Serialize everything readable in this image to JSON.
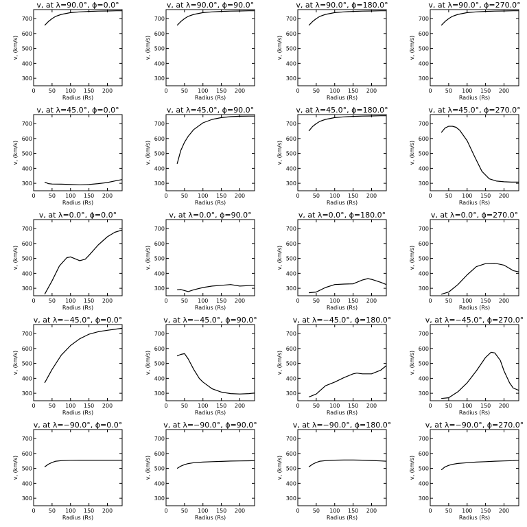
{
  "chart_data": [
    {
      "type": "line",
      "title": "v<sub>r</sub> at λ=90.0°, ϕ=0.0°",
      "title_plain": "v, at λ=90.0°, ϕ=0.0°",
      "xlabel": "Radius (Rs)",
      "ylabel": "v, (km/s)",
      "xlim": [
        0,
        240
      ],
      "ylim": [
        250,
        760
      ],
      "xticks": [
        0,
        50,
        100,
        150,
        200
      ],
      "yticks": [
        300,
        400,
        500,
        600,
        700
      ],
      "x": [
        30,
        40,
        50,
        60,
        75,
        100,
        125,
        150,
        175,
        200,
        225,
        240
      ],
      "y": [
        655,
        680,
        700,
        715,
        728,
        740,
        745,
        748,
        750,
        751,
        752,
        752
      ]
    },
    {
      "type": "line",
      "title_plain": "v, at λ=90.0°, ϕ=90.0°",
      "xlabel": "Radius (Rs)",
      "ylabel": "v, (km/s)",
      "xlim": [
        0,
        240
      ],
      "ylim": [
        250,
        760
      ],
      "xticks": [
        0,
        50,
        100,
        150,
        200
      ],
      "yticks": [
        300,
        400,
        500,
        600,
        700
      ],
      "x": [
        30,
        40,
        50,
        60,
        75,
        100,
        125,
        150,
        175,
        200,
        225,
        240
      ],
      "y": [
        655,
        680,
        700,
        715,
        728,
        740,
        745,
        748,
        750,
        751,
        752,
        752
      ]
    },
    {
      "type": "line",
      "title_plain": "v, at λ=90.0°, ϕ=180.0°",
      "xlabel": "Radius (Rs)",
      "ylabel": "v, (km/s)",
      "xlim": [
        0,
        240
      ],
      "ylim": [
        250,
        760
      ],
      "xticks": [
        0,
        50,
        100,
        150,
        200
      ],
      "yticks": [
        300,
        400,
        500,
        600,
        700
      ],
      "x": [
        30,
        40,
        50,
        60,
        75,
        100,
        125,
        150,
        175,
        200,
        225,
        240
      ],
      "y": [
        655,
        680,
        700,
        715,
        728,
        740,
        745,
        748,
        750,
        751,
        752,
        752
      ]
    },
    {
      "type": "line",
      "title_plain": "v, at λ=90.0°, ϕ=270.0°",
      "xlabel": "Radius (Rs)",
      "ylabel": "v, (km/s)",
      "xlim": [
        0,
        240
      ],
      "ylim": [
        250,
        760
      ],
      "xticks": [
        0,
        50,
        100,
        150,
        200
      ],
      "yticks": [
        300,
        400,
        500,
        600,
        700
      ],
      "x": [
        30,
        40,
        50,
        60,
        75,
        100,
        125,
        150,
        175,
        200,
        225,
        240
      ],
      "y": [
        655,
        680,
        700,
        715,
        728,
        740,
        745,
        748,
        750,
        751,
        752,
        752
      ]
    },
    {
      "type": "line",
      "title_plain": "v, at λ=45.0°, ϕ=0.0°",
      "xlabel": "Radius (Rs)",
      "ylabel": "v, (km/s)",
      "xlim": [
        0,
        240
      ],
      "ylim": [
        250,
        760
      ],
      "xticks": [
        0,
        50,
        100,
        150,
        200
      ],
      "yticks": [
        300,
        400,
        500,
        600,
        700
      ],
      "x": [
        30,
        40,
        50,
        75,
        100,
        125,
        150,
        175,
        200,
        225,
        240
      ],
      "y": [
        308,
        298,
        295,
        294,
        292,
        290,
        292,
        298,
        305,
        318,
        325
      ]
    },
    {
      "type": "line",
      "title_plain": "v, at λ=45.0°, ϕ=90.0°",
      "xlabel": "Radius (Rs)",
      "ylabel": "v, (km/s)",
      "xlim": [
        0,
        240
      ],
      "ylim": [
        250,
        760
      ],
      "xticks": [
        0,
        50,
        100,
        150,
        200
      ],
      "yticks": [
        300,
        400,
        500,
        600,
        700
      ],
      "x": [
        30,
        40,
        50,
        60,
        75,
        100,
        125,
        150,
        175,
        200,
        225,
        240
      ],
      "y": [
        430,
        520,
        575,
        615,
        660,
        705,
        728,
        740,
        746,
        749,
        750,
        750
      ]
    },
    {
      "type": "line",
      "title_plain": "v, at λ=45.0°, ϕ=180.0°",
      "xlabel": "Radius (Rs)",
      "ylabel": "v, (km/s)",
      "xlim": [
        0,
        240
      ],
      "ylim": [
        250,
        760
      ],
      "xticks": [
        0,
        50,
        100,
        150,
        200
      ],
      "yticks": [
        300,
        400,
        500,
        600,
        700
      ],
      "x": [
        30,
        40,
        50,
        60,
        75,
        100,
        125,
        150,
        175,
        200,
        225,
        240
      ],
      "y": [
        650,
        680,
        700,
        715,
        728,
        740,
        745,
        748,
        750,
        751,
        752,
        752
      ]
    },
    {
      "type": "line",
      "title_plain": "v, at λ=45.0°, ϕ=270.0°",
      "xlabel": "Radius (Rs)",
      "ylabel": "v, (km/s)",
      "xlim": [
        0,
        240
      ],
      "ylim": [
        250,
        760
      ],
      "xticks": [
        0,
        50,
        100,
        150,
        200
      ],
      "yticks": [
        300,
        400,
        500,
        600,
        700
      ],
      "x": [
        30,
        40,
        50,
        60,
        70,
        80,
        100,
        120,
        140,
        160,
        180,
        200,
        220,
        240
      ],
      "y": [
        640,
        670,
        682,
        682,
        675,
        655,
        585,
        480,
        380,
        330,
        315,
        310,
        308,
        308
      ]
    },
    {
      "type": "line",
      "title_plain": "v, at λ=0.0°, ϕ=0.0°",
      "xlabel": "Radius (Rs)",
      "ylabel": "v, (km/s)",
      "xlim": [
        0,
        240
      ],
      "ylim": [
        250,
        760
      ],
      "xticks": [
        0,
        50,
        100,
        150,
        200
      ],
      "yticks": [
        300,
        400,
        500,
        600,
        700
      ],
      "x": [
        30,
        50,
        70,
        90,
        100,
        110,
        125,
        140,
        150,
        175,
        200,
        220,
        240
      ],
      "y": [
        260,
        350,
        450,
        505,
        510,
        500,
        485,
        495,
        520,
        590,
        645,
        675,
        690
      ]
    },
    {
      "type": "line",
      "title_plain": "v, at λ=0.0°, ϕ=90.0°",
      "xlabel": "Radius (Rs)",
      "ylabel": "v, (km/s)",
      "xlim": [
        0,
        240
      ],
      "ylim": [
        250,
        760
      ],
      "xticks": [
        0,
        50,
        100,
        150,
        200
      ],
      "yticks": [
        300,
        400,
        500,
        600,
        700
      ],
      "x": [
        30,
        40,
        50,
        60,
        75,
        100,
        125,
        150,
        175,
        200,
        225,
        240
      ],
      "y": [
        290,
        292,
        285,
        278,
        290,
        305,
        315,
        320,
        325,
        315,
        318,
        320
      ]
    },
    {
      "type": "line",
      "title_plain": "v, at λ=0.0°, ϕ=180.0°",
      "xlabel": "Radius (Rs)",
      "ylabel": "v, (km/s)",
      "xlim": [
        0,
        240
      ],
      "ylim": [
        250,
        760
      ],
      "xticks": [
        0,
        50,
        100,
        150,
        200
      ],
      "yticks": [
        300,
        400,
        500,
        600,
        700
      ],
      "x": [
        30,
        50,
        75,
        100,
        125,
        150,
        175,
        190,
        200,
        225,
        240
      ],
      "y": [
        270,
        275,
        305,
        325,
        328,
        330,
        355,
        365,
        360,
        340,
        325
      ]
    },
    {
      "type": "line",
      "title_plain": "v, at λ=0.0°, ϕ=270.0°",
      "xlabel": "Radius (Rs)",
      "ylabel": "v, (km/s)",
      "xlim": [
        0,
        240
      ],
      "ylim": [
        250,
        760
      ],
      "xticks": [
        0,
        50,
        100,
        150,
        200
      ],
      "yticks": [
        300,
        400,
        500,
        600,
        700
      ],
      "x": [
        30,
        50,
        75,
        100,
        125,
        150,
        175,
        200,
        225,
        240
      ],
      "y": [
        260,
        275,
        325,
        390,
        445,
        465,
        468,
        455,
        418,
        410
      ]
    },
    {
      "type": "line",
      "title_plain": "v, at λ=−45.0°, ϕ=0.0°",
      "xlabel": "Radius (Rs)",
      "ylabel": "v, (km/s)",
      "xlim": [
        0,
        240
      ],
      "ylim": [
        250,
        760
      ],
      "xticks": [
        0,
        50,
        100,
        150,
        200
      ],
      "yticks": [
        300,
        400,
        500,
        600,
        700
      ],
      "x": [
        30,
        50,
        75,
        100,
        125,
        150,
        175,
        200,
        225,
        240
      ],
      "y": [
        370,
        460,
        555,
        620,
        665,
        695,
        712,
        722,
        730,
        735
      ]
    },
    {
      "type": "line",
      "title_plain": "v, at λ=−45.0°, ϕ=90.0°",
      "xlabel": "Radius (Rs)",
      "ylabel": "v, (km/s)",
      "xlim": [
        0,
        240
      ],
      "ylim": [
        250,
        760
      ],
      "xticks": [
        0,
        50,
        100,
        150,
        200
      ],
      "yticks": [
        300,
        400,
        500,
        600,
        700
      ],
      "x": [
        30,
        40,
        50,
        60,
        75,
        90,
        100,
        125,
        150,
        175,
        200,
        225,
        240
      ],
      "y": [
        550,
        560,
        565,
        530,
        460,
        400,
        375,
        330,
        308,
        298,
        295,
        298,
        302
      ]
    },
    {
      "type": "line",
      "title_plain": "v, at λ=−45.0°, ϕ=180.0°",
      "xlabel": "Radius (Rs)",
      "ylabel": "v, (km/s)",
      "xlim": [
        0,
        240
      ],
      "ylim": [
        250,
        760
      ],
      "xticks": [
        0,
        50,
        100,
        150,
        200
      ],
      "yticks": [
        300,
        400,
        500,
        600,
        700
      ],
      "x": [
        30,
        50,
        75,
        100,
        125,
        150,
        160,
        175,
        200,
        225,
        240
      ],
      "y": [
        275,
        295,
        350,
        375,
        405,
        430,
        435,
        430,
        430,
        455,
        485
      ]
    },
    {
      "type": "line",
      "title_plain": "v, at λ=−45.0°, ϕ=270.0°",
      "xlabel": "Radius (Rs)",
      "ylabel": "v, (km/s)",
      "xlim": [
        0,
        240
      ],
      "ylim": [
        250,
        760
      ],
      "xticks": [
        0,
        50,
        100,
        150,
        200
      ],
      "yticks": [
        300,
        400,
        500,
        600,
        700
      ],
      "x": [
        30,
        50,
        75,
        100,
        125,
        150,
        165,
        175,
        190,
        200,
        215,
        225,
        240
      ],
      "y": [
        265,
        270,
        310,
        370,
        450,
        540,
        575,
        570,
        520,
        450,
        370,
        335,
        320
      ]
    },
    {
      "type": "line",
      "title_plain": "v, at λ=−90.0°, ϕ=0.0°",
      "xlabel": "Radius (Rs)",
      "ylabel": "v, (km/s)",
      "xlim": [
        0,
        240
      ],
      "ylim": [
        250,
        760
      ],
      "xticks": [
        0,
        50,
        100,
        150,
        200
      ],
      "yticks": [
        300,
        400,
        500,
        600,
        700
      ],
      "x": [
        30,
        40,
        50,
        60,
        75,
        100,
        125,
        150,
        175,
        200,
        225,
        240
      ],
      "y": [
        510,
        528,
        540,
        548,
        552,
        554,
        555,
        555,
        555,
        555,
        555,
        555
      ]
    },
    {
      "type": "line",
      "title_plain": "v, at λ=−90.0°, ϕ=90.0°",
      "xlabel": "Radius (Rs)",
      "ylabel": "v, (km/s)",
      "xlim": [
        0,
        240
      ],
      "ylim": [
        250,
        760
      ],
      "xticks": [
        0,
        50,
        100,
        150,
        200
      ],
      "yticks": [
        300,
        400,
        500,
        600,
        700
      ],
      "x": [
        30,
        40,
        50,
        60,
        75,
        100,
        125,
        150,
        175,
        200,
        225,
        240
      ],
      "y": [
        500,
        515,
        525,
        532,
        538,
        542,
        545,
        547,
        549,
        550,
        551,
        552
      ]
    },
    {
      "type": "line",
      "title_plain": "v, at λ=−90.0°, ϕ=180.0°",
      "xlabel": "Radius (Rs)",
      "ylabel": "v, (km/s)",
      "xlim": [
        0,
        240
      ],
      "ylim": [
        250,
        760
      ],
      "xticks": [
        0,
        50,
        100,
        150,
        200
      ],
      "yticks": [
        300,
        400,
        500,
        600,
        700
      ],
      "x": [
        30,
        40,
        50,
        60,
        75,
        100,
        125,
        150,
        175,
        200,
        225,
        240
      ],
      "y": [
        510,
        528,
        540,
        548,
        552,
        555,
        556,
        556,
        555,
        553,
        550,
        548
      ]
    },
    {
      "type": "line",
      "title_plain": "v, at λ=−90.0°, ϕ=270.0°",
      "xlabel": "Radius (Rs)",
      "ylabel": "v, (km/s)",
      "xlim": [
        0,
        240
      ],
      "ylim": [
        250,
        760
      ],
      "xticks": [
        0,
        50,
        100,
        150,
        200
      ],
      "yticks": [
        300,
        400,
        500,
        600,
        700
      ],
      "x": [
        30,
        40,
        50,
        60,
        75,
        100,
        125,
        150,
        175,
        200,
        225,
        240
      ],
      "y": [
        490,
        510,
        520,
        527,
        533,
        538,
        542,
        545,
        548,
        550,
        552,
        554
      ]
    }
  ]
}
